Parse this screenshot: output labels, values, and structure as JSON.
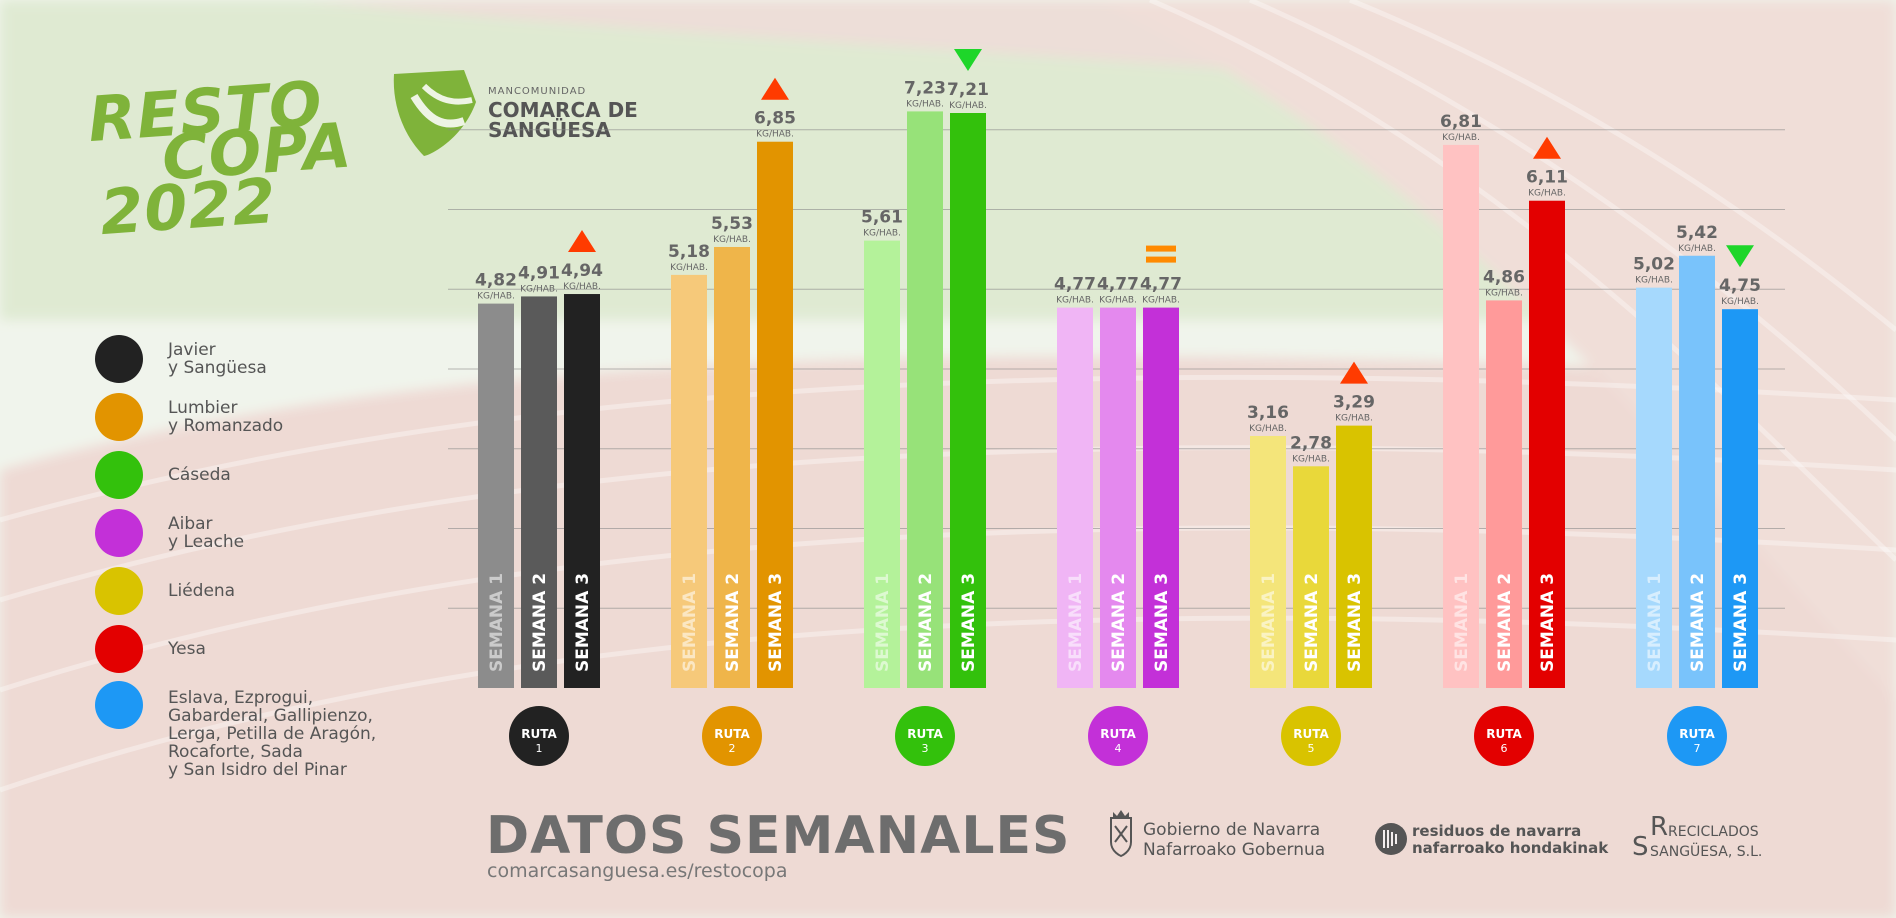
{
  "header": {
    "title_lines": [
      "RESTO",
      "COPA",
      "2022"
    ],
    "org_small": "MANCOMUNIDAD",
    "org_line1": "COMARCA DE",
    "org_line2": "SANGÜESA"
  },
  "legend": [
    {
      "label": "Javier\ny Sangüesa",
      "color": "#222222"
    },
    {
      "label": "Lumbier\ny Romanzado",
      "color": "#e29400"
    },
    {
      "label": "Cáseda",
      "color": "#33c10c"
    },
    {
      "label": "Aibar\ny Leache",
      "color": "#c330d8"
    },
    {
      "label": "Liédena",
      "color": "#d9c300"
    },
    {
      "label": "Yesa",
      "color": "#e30000"
    },
    {
      "label": "Eslava, Ezprogui,\nGabarderal, Gallipienzo,\nLerga, Petilla de Aragón,\nRocaforte, Sada\ny San Isidro del Pinar",
      "color": "#1d98f5"
    }
  ],
  "chart_data": {
    "type": "bar",
    "unit": "KG/HAB.",
    "categories": [
      "RUTA 1",
      "RUTA 2",
      "RUTA 3",
      "RUTA 4",
      "RUTA 5",
      "RUTA 6",
      "RUTA 7"
    ],
    "series_labels": [
      "SEMANA 1",
      "SEMANA 2",
      "SEMANA 3"
    ],
    "ylim": [
      0,
      8
    ],
    "grid": true,
    "groups": [
      {
        "route": "RUTA",
        "number": "1",
        "values": [
          4.82,
          4.91,
          4.94
        ],
        "labels": [
          "4,82",
          "4,91",
          "4,94"
        ],
        "colors": [
          "#8c8c8c",
          "#5a5a5a",
          "#222222"
        ],
        "trend": "up"
      },
      {
        "route": "RUTA",
        "number": "2",
        "values": [
          5.18,
          5.53,
          6.85
        ],
        "labels": [
          "5,18",
          "5,53",
          "6,85"
        ],
        "colors": [
          "#f6c97a",
          "#efb54a",
          "#e29400"
        ],
        "trend": "up"
      },
      {
        "route": "RUTA",
        "number": "3",
        "values": [
          5.61,
          7.23,
          7.21
        ],
        "labels": [
          "5,61",
          "7,23",
          "7,21"
        ],
        "colors": [
          "#b4f29a",
          "#97e279",
          "#33c10c"
        ],
        "trend": "down"
      },
      {
        "route": "RUTA",
        "number": "4",
        "values": [
          4.77,
          4.77,
          4.77
        ],
        "labels": [
          "4,77",
          "4,77",
          "4,77"
        ],
        "colors": [
          "#f0b5f5",
          "#e489ee",
          "#c330d8"
        ],
        "trend": "equal"
      },
      {
        "route": "RUTA",
        "number": "5",
        "values": [
          3.16,
          2.78,
          3.29
        ],
        "labels": [
          "3,16",
          "2,78",
          "3,29"
        ],
        "colors": [
          "#f4e57a",
          "#e9d83a",
          "#d9c300"
        ],
        "trend": "up"
      },
      {
        "route": "RUTA",
        "number": "6",
        "values": [
          6.81,
          4.86,
          6.11
        ],
        "labels": [
          "6,81",
          "4,86",
          "6,11"
        ],
        "colors": [
          "#ffc2c2",
          "#ff9a9a",
          "#e30000"
        ],
        "trend": "up"
      },
      {
        "route": "RUTA",
        "number": "7",
        "values": [
          5.02,
          5.42,
          4.75
        ],
        "labels": [
          "5,02",
          "5,42",
          "4,75"
        ],
        "colors": [
          "#a6d9fd",
          "#79c3fb",
          "#1d98f5"
        ],
        "trend": "down"
      }
    ],
    "route_circle_colors": [
      "#222222",
      "#e29400",
      "#33c10c",
      "#c330d8",
      "#d9c300",
      "#e30000",
      "#1d98f5"
    ],
    "trend_colors": {
      "up": "#ff3b00",
      "down": "#1ed62a",
      "equal": "#ff8a00"
    }
  },
  "footer": {
    "title": "DATOS SEMANALES",
    "url": "comarcasanguesa.es/restocopa",
    "gov_line1": "Gobierno de Navarra",
    "gov_line2": "Nafarroako Gobernua",
    "res_line1": "residuos de navarra",
    "res_line2": "nafarroako hondakinak",
    "rec_line1": "RECICLADOS",
    "rec_line2": "SANGÜESA, S.L.",
    "rec_big1": "R",
    "rec_big2": "S"
  }
}
